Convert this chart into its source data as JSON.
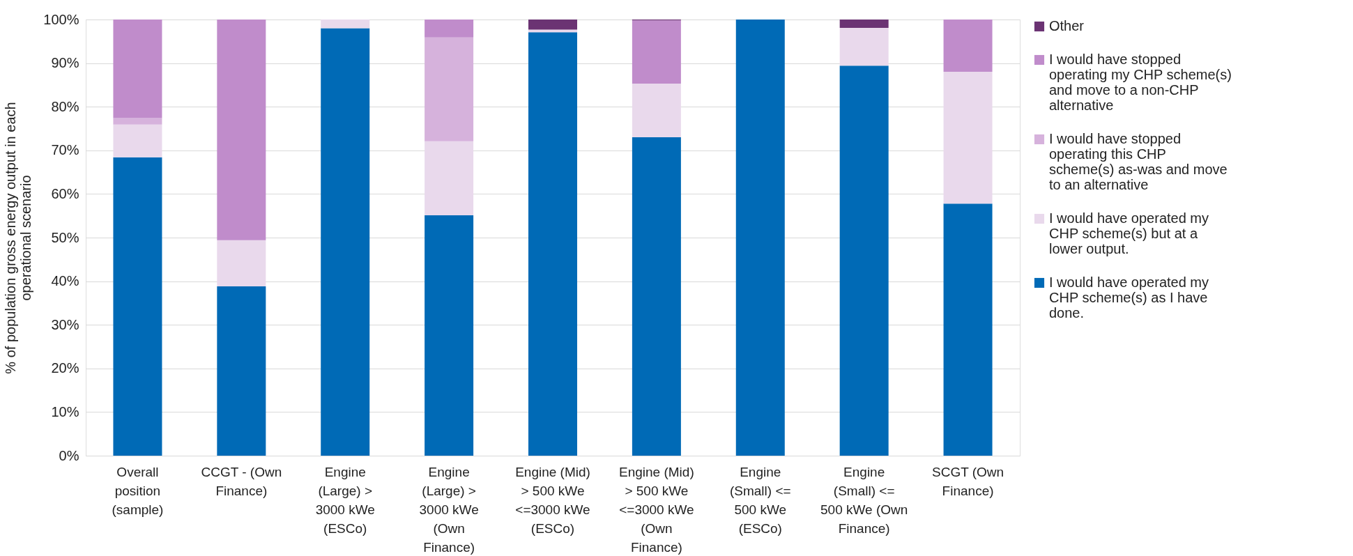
{
  "chart_data": {
    "type": "bar",
    "stacked": true,
    "ylabel": "% of population gross energy output in each operational scenario",
    "categories": [
      "Overall position (sample)",
      "CCGT - (Own Finance)",
      "Engine (Large) > 3000 kWe (ESCo)",
      "Engine (Large) > 3000 kWe (Own Finance)",
      "Engine (Mid) > 500 kWe <=3000 kWe (ESCo)",
      "Engine (Mid) > 500 kWe <=3000 kWe (Own Finance)",
      "Engine (Small) <= 500 kWe (ESCo)",
      "Engine (Small) <= 500 kWe (Own Finance)",
      "SCGT (Own Finance)"
    ],
    "series": [
      {
        "name": "I would have operated my CHP scheme(s) as I have done.",
        "color": "#006ab6",
        "values": [
          68.4,
          38.8,
          98.0,
          55.1,
          97.1,
          73.0,
          100,
          89.4,
          57.8
        ]
      },
      {
        "name": "I would have operated my CHP scheme(s) but at a lower output.",
        "color": "#e9d9ec",
        "values": [
          7.5,
          10.6,
          2.0,
          17.0,
          0.6,
          12.3,
          0,
          8.7,
          30.2
        ]
      },
      {
        "name": "I would have stopped operating this CHP scheme(s) as-was and move to an alternative",
        "color": "#d6b2dc",
        "values": [
          1.5,
          0,
          0,
          23.8,
          0,
          0,
          0,
          0,
          0
        ]
      },
      {
        "name": "I would have stopped operating my CHP scheme(s) and move to a non-CHP alternative",
        "color": "#c08ccb",
        "values": [
          22.6,
          50.6,
          0,
          4.1,
          0,
          14.5,
          0,
          0,
          12.0
        ]
      },
      {
        "name": "Other",
        "color": "#6b3373",
        "values": [
          0,
          0,
          0,
          0,
          2.3,
          0.2,
          0,
          1.9,
          0
        ]
      }
    ],
    "ylim": [
      0,
      100
    ],
    "yticks": [
      {
        "value": 0,
        "label": "0%"
      },
      {
        "value": 10,
        "label": "10%"
      },
      {
        "value": 20,
        "label": "20%"
      },
      {
        "value": 30,
        "label": "30%"
      },
      {
        "value": 40,
        "label": "40%"
      },
      {
        "value": 50,
        "label": "50%"
      },
      {
        "value": 60,
        "label": "60%"
      },
      {
        "value": 70,
        "label": "70%"
      },
      {
        "value": 80,
        "label": "80%"
      },
      {
        "value": 90,
        "label": "90%"
      },
      {
        "value": 100,
        "label": "100%"
      }
    ],
    "grid": "y",
    "legend": "right"
  }
}
